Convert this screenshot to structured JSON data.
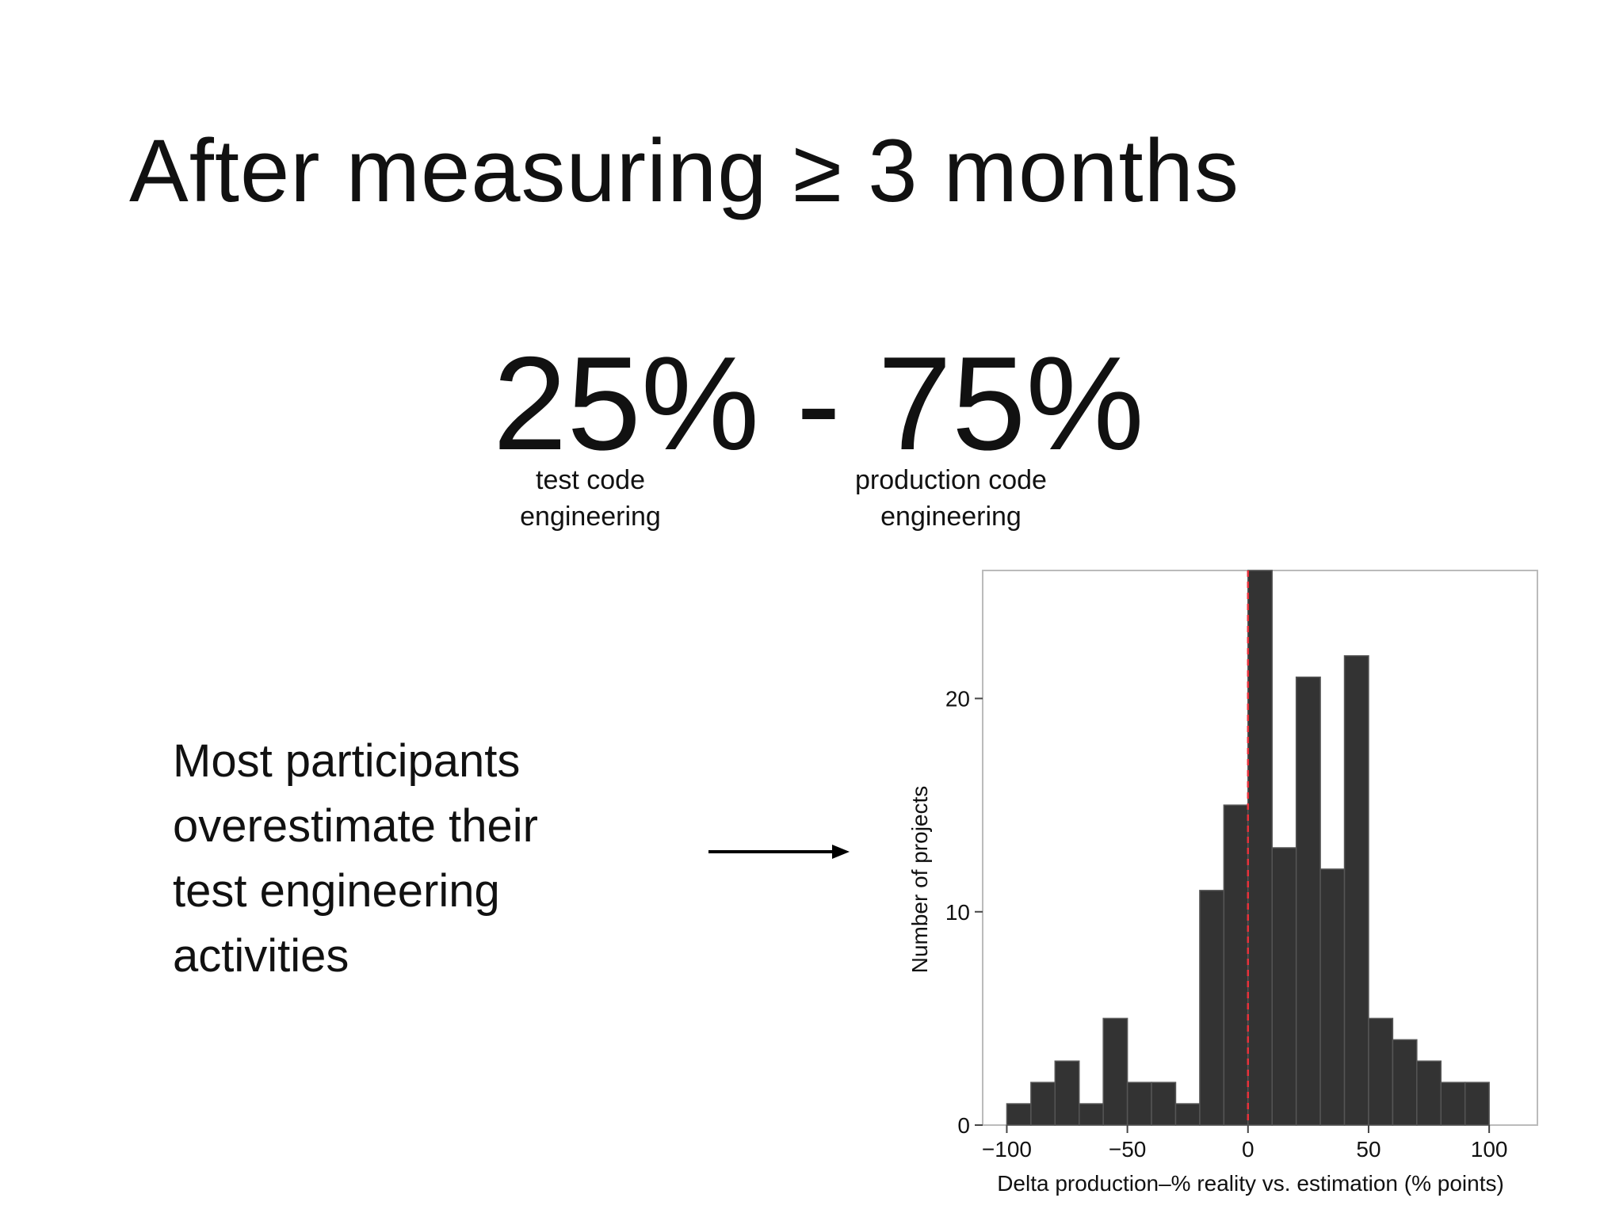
{
  "slide": {
    "title": "After measuring ≥ 3 months",
    "ratio": "25% - 75%",
    "label_test": "test code engineering",
    "label_test_lines": [
      "test code",
      "engineering"
    ],
    "label_production": "production code engineering",
    "label_production_lines": [
      "production code",
      "engineering"
    ],
    "callout": "Most participants overestimate their test engineering activities",
    "callout_lines": [
      "Most participants",
      "overestimate their",
      "test engineering",
      "activities"
    ]
  },
  "chart_data": {
    "type": "bar",
    "title": "",
    "xlabel": "Delta production–% reality vs. estimation (% points)",
    "ylabel": "Number of projects",
    "xlim": [
      -110,
      120
    ],
    "ylim": [
      0,
      26
    ],
    "xticks": [
      -100,
      -50,
      0,
      50,
      100
    ],
    "xtick_labels": [
      "−100",
      "−50",
      "0",
      "50",
      "100"
    ],
    "yticks": [
      0,
      10,
      20
    ],
    "ytick_labels": [
      "0",
      "10",
      "20"
    ],
    "bin_width": 10,
    "bin_starts": [
      -100,
      -90,
      -80,
      -70,
      -60,
      -50,
      -40,
      -30,
      -20,
      -10,
      0,
      10,
      20,
      30,
      40,
      50,
      60,
      70,
      80,
      90
    ],
    "values": [
      1,
      2,
      3,
      1,
      5,
      2,
      2,
      1,
      11,
      15,
      26,
      13,
      21,
      12,
      22,
      5,
      4,
      3,
      2,
      2
    ],
    "reference_line_x": 0,
    "grid": false,
    "colors": {
      "bars": "#333333",
      "reference_line": "#e8313b",
      "frame": "#bbbbbb"
    }
  }
}
